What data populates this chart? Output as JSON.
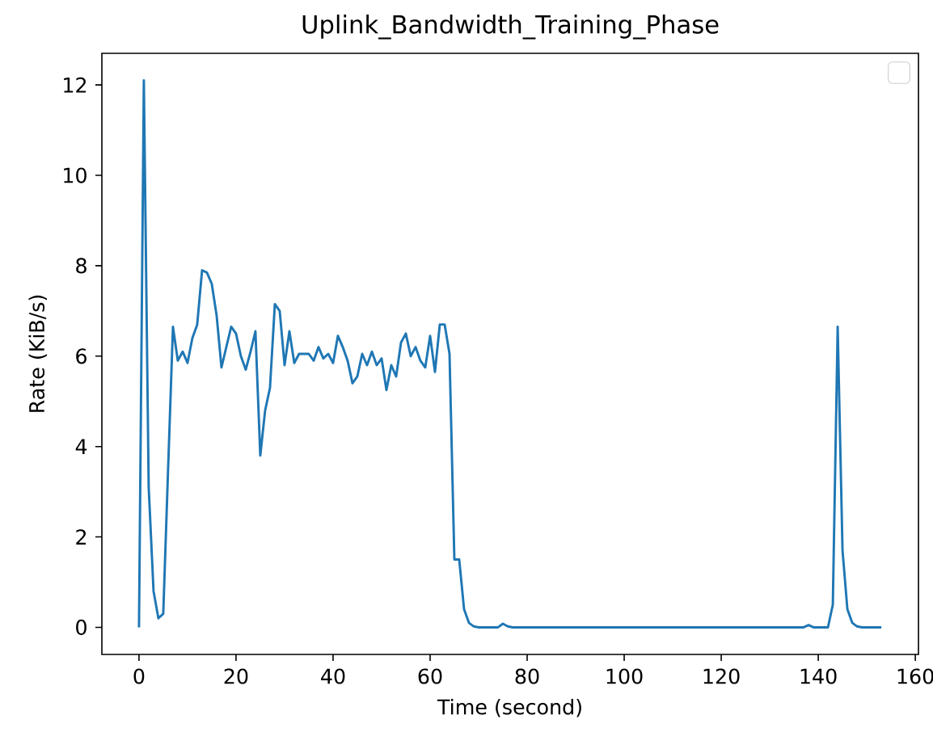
{
  "chart_data": {
    "type": "line",
    "title": "Uplink_Bandwidth_Training_Phase",
    "xlabel": "Time (second)",
    "ylabel": "Rate (KiB/s)",
    "x": [
      0,
      1,
      2,
      3,
      4,
      5,
      6,
      7,
      8,
      9,
      10,
      11,
      12,
      13,
      14,
      15,
      16,
      17,
      18,
      19,
      20,
      21,
      22,
      23,
      24,
      25,
      26,
      27,
      28,
      29,
      30,
      31,
      32,
      33,
      34,
      35,
      36,
      37,
      38,
      39,
      40,
      41,
      42,
      43,
      44,
      45,
      46,
      47,
      48,
      49,
      50,
      51,
      52,
      53,
      54,
      55,
      56,
      57,
      58,
      59,
      60,
      61,
      62,
      63,
      64,
      65,
      66,
      67,
      68,
      69,
      70,
      74,
      75,
      76,
      77,
      100,
      120,
      137,
      138,
      139,
      142,
      143,
      144,
      145,
      146,
      147,
      148,
      149,
      153
    ],
    "series": [
      {
        "color": "#1f77b4",
        "values": [
          0,
          12.1,
          3.1,
          0.8,
          0.2,
          0.3,
          3.5,
          6.65,
          5.9,
          6.1,
          5.85,
          6.4,
          6.7,
          7.9,
          7.85,
          7.6,
          6.9,
          5.75,
          6.2,
          6.65,
          6.5,
          6.0,
          5.7,
          6.1,
          6.55,
          3.8,
          4.8,
          5.3,
          7.15,
          7.0,
          5.8,
          6.55,
          5.85,
          6.05,
          6.05,
          6.05,
          5.9,
          6.2,
          5.95,
          6.05,
          5.85,
          6.45,
          6.2,
          5.9,
          5.4,
          5.55,
          6.05,
          5.8,
          6.1,
          5.8,
          5.95,
          5.25,
          5.8,
          5.55,
          6.3,
          6.5,
          6.0,
          6.2,
          5.9,
          5.75,
          6.45,
          5.65,
          6.7,
          6.7,
          6.05,
          1.5,
          1.5,
          0.4,
          0.1,
          0.02,
          0,
          0,
          0.08,
          0.02,
          0,
          0,
          0,
          0,
          0.05,
          0,
          0,
          0.5,
          6.65,
          1.7,
          0.4,
          0.1,
          0.02,
          0,
          0
        ]
      }
    ],
    "xlim": [
      -7.65,
      160.65
    ],
    "ylim": [
      -0.6,
      12.7
    ],
    "xticks": [
      0,
      20,
      40,
      60,
      80,
      100,
      120,
      140,
      160
    ],
    "yticks": [
      0,
      2,
      4,
      6,
      8,
      10,
      12
    ]
  }
}
